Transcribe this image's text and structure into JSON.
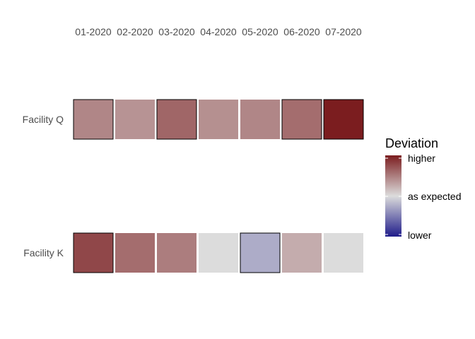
{
  "chart_data": {
    "type": "heatmap",
    "title": "",
    "xlabel": "",
    "ylabel": "",
    "x": [
      "01-2020",
      "02-2020",
      "03-2020",
      "04-2020",
      "05-2020",
      "06-2020",
      "07-2020"
    ],
    "y": [
      "Facility Q",
      "Facility K"
    ],
    "rows": [
      {
        "label": "Facility Q",
        "values": [
          0.45,
          0.38,
          0.62,
          0.4,
          0.45,
          0.58,
          1.0
        ],
        "outlined": [
          true,
          false,
          true,
          false,
          false,
          true,
          true
        ]
      },
      {
        "label": "Facility K",
        "values": [
          0.78,
          0.58,
          0.5,
          0.0,
          -0.25,
          0.25,
          0.0
        ],
        "outlined": [
          true,
          false,
          false,
          false,
          true,
          false,
          false
        ]
      }
    ],
    "value_range": [
      -1,
      1
    ],
    "legend": {
      "title": "Deviation",
      "labels": [
        "higher",
        "as expected",
        "lower"
      ],
      "position": "right"
    },
    "colors": {
      "high": "#7b1d1f",
      "mid": "#dcdcdc",
      "low": "#1f1c8a",
      "outline": "#000000"
    }
  }
}
